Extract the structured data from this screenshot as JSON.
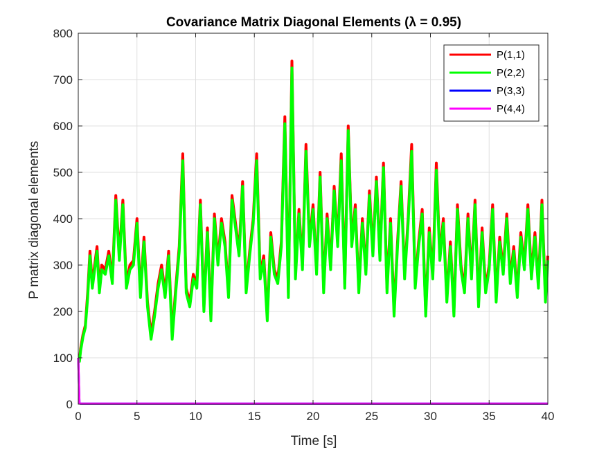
{
  "chart_data": {
    "type": "line",
    "title": "Covariance Matrix Diagonal Elements (λ = 0.95)",
    "xlabel": "Time [s]",
    "ylabel": "P matrix diagonal elements",
    "xlim": [
      0,
      40
    ],
    "ylim": [
      0,
      800
    ],
    "xticks": [
      0,
      5,
      10,
      15,
      20,
      25,
      30,
      35,
      40
    ],
    "yticks": [
      0,
      100,
      200,
      300,
      400,
      500,
      600,
      700,
      800
    ],
    "xtick_labels": [
      "0",
      "5",
      "10",
      "15",
      "20",
      "25",
      "30",
      "35",
      "40"
    ],
    "ytick_labels": [
      "0",
      "100",
      "200",
      "300",
      "400",
      "500",
      "600",
      "700",
      "800"
    ],
    "grid": true,
    "legend_position": "top-right",
    "x": [
      0,
      0.1,
      0.2,
      0.4,
      0.6,
      0.8,
      1.0,
      1.2,
      1.4,
      1.6,
      1.8,
      2.0,
      2.3,
      2.6,
      2.9,
      3.2,
      3.5,
      3.8,
      4.1,
      4.4,
      4.7,
      5.0,
      5.3,
      5.6,
      5.9,
      6.2,
      6.5,
      6.8,
      7.1,
      7.4,
      7.7,
      8.0,
      8.3,
      8.6,
      8.9,
      9.2,
      9.5,
      9.8,
      10.1,
      10.4,
      10.7,
      11.0,
      11.3,
      11.6,
      11.9,
      12.2,
      12.5,
      12.8,
      13.1,
      13.4,
      13.7,
      14.0,
      14.3,
      14.6,
      14.9,
      15.2,
      15.5,
      15.8,
      16.1,
      16.4,
      16.7,
      17.0,
      17.3,
      17.6,
      17.9,
      18.2,
      18.5,
      18.8,
      19.1,
      19.4,
      19.7,
      20.0,
      20.3,
      20.6,
      20.9,
      21.2,
      21.5,
      21.8,
      22.1,
      22.4,
      22.7,
      23.0,
      23.3,
      23.6,
      23.9,
      24.2,
      24.5,
      24.8,
      25.1,
      25.4,
      25.7,
      26.0,
      26.3,
      26.6,
      26.9,
      27.2,
      27.5,
      27.8,
      28.1,
      28.4,
      28.7,
      29.0,
      29.3,
      29.6,
      29.9,
      30.2,
      30.5,
      30.8,
      31.1,
      31.4,
      31.7,
      32.0,
      32.3,
      32.6,
      32.9,
      33.2,
      33.5,
      33.8,
      34.1,
      34.4,
      34.7,
      35.0,
      35.3,
      35.6,
      35.9,
      36.2,
      36.5,
      36.8,
      37.1,
      37.4,
      37.7,
      38.0,
      38.3,
      38.6,
      38.9,
      39.2,
      39.5,
      39.8,
      40.0
    ],
    "series": [
      {
        "name": "P(1,1)",
        "color": "#ff0000",
        "values": [
          100,
          95,
          120,
          150,
          170,
          240,
          330,
          260,
          300,
          340,
          250,
          300,
          290,
          330,
          270,
          450,
          320,
          440,
          260,
          300,
          310,
          400,
          240,
          360,
          220,
          150,
          200,
          260,
          300,
          240,
          330,
          150,
          250,
          340,
          540,
          250,
          220,
          280,
          260,
          440,
          210,
          380,
          190,
          410,
          310,
          400,
          350,
          240,
          450,
          390,
          330,
          480,
          250,
          330,
          400,
          540,
          280,
          320,
          190,
          370,
          290,
          270,
          350,
          620,
          240,
          740,
          280,
          420,
          300,
          560,
          350,
          430,
          290,
          500,
          250,
          410,
          300,
          470,
          350,
          540,
          260,
          600,
          350,
          430,
          250,
          400,
          290,
          460,
          330,
          490,
          320,
          520,
          250,
          400,
          200,
          350,
          480,
          280,
          400,
          560,
          260,
          350,
          420,
          200,
          380,
          280,
          520,
          320,
          400,
          230,
          350,
          200,
          430,
          300,
          250,
          410,
          280,
          440,
          220,
          380,
          250,
          300,
          430,
          230,
          360,
          290,
          410,
          270,
          340,
          240,
          370,
          300,
          430,
          280,
          370,
          260,
          440,
          230,
          320
        ]
      },
      {
        "name": "P(2,2)",
        "color": "#00ff00",
        "values": [
          100,
          92,
          115,
          145,
          165,
          230,
          320,
          250,
          290,
          330,
          240,
          290,
          280,
          320,
          260,
          440,
          310,
          430,
          250,
          290,
          300,
          390,
          230,
          350,
          210,
          140,
          190,
          250,
          290,
          230,
          320,
          140,
          240,
          330,
          525,
          240,
          210,
          270,
          250,
          430,
          200,
          370,
          180,
          400,
          300,
          390,
          340,
          230,
          440,
          380,
          320,
          470,
          240,
          320,
          390,
          525,
          270,
          310,
          180,
          360,
          280,
          260,
          340,
          605,
          230,
          725,
          270,
          410,
          290,
          545,
          340,
          420,
          280,
          490,
          240,
          400,
          290,
          460,
          340,
          525,
          250,
          590,
          340,
          420,
          240,
          390,
          280,
          450,
          320,
          480,
          310,
          510,
          240,
          390,
          190,
          340,
          470,
          270,
          390,
          545,
          250,
          340,
          410,
          190,
          370,
          270,
          505,
          310,
          390,
          220,
          340,
          190,
          420,
          290,
          240,
          400,
          270,
          430,
          210,
          370,
          240,
          290,
          420,
          220,
          350,
          280,
          400,
          260,
          330,
          230,
          360,
          290,
          420,
          270,
          360,
          250,
          430,
          220,
          310
        ]
      },
      {
        "name": "P(3,3)",
        "color": "#0000ff",
        "values": [
          100,
          2,
          1,
          1,
          1,
          1,
          1,
          1,
          1,
          1,
          1,
          1,
          1,
          1,
          1,
          1,
          1,
          1,
          1,
          1,
          1,
          1,
          1,
          1,
          1,
          1,
          1,
          1,
          1,
          1,
          1,
          1,
          1,
          1,
          1,
          1,
          1,
          1,
          1,
          1,
          1,
          1,
          1,
          1,
          1,
          1,
          1,
          1,
          1,
          1,
          1,
          1,
          1,
          1,
          1,
          1,
          1,
          1,
          1,
          1,
          1,
          1,
          1,
          1,
          1,
          1,
          1,
          1,
          1,
          1,
          1,
          1,
          1,
          1,
          1,
          1,
          1,
          1,
          1,
          1,
          1,
          1,
          1,
          1,
          1,
          1,
          1,
          1,
          1,
          1,
          1,
          1,
          1,
          1,
          1,
          1,
          1,
          1,
          1,
          1,
          1,
          1,
          1,
          1,
          1,
          1,
          1,
          1,
          1,
          1,
          1,
          1,
          1,
          1,
          1,
          1,
          1,
          1,
          1,
          1,
          1,
          1,
          1,
          1,
          1,
          1,
          1,
          1,
          1,
          1,
          1,
          1,
          1,
          1,
          1,
          1,
          1,
          1,
          1
        ]
      },
      {
        "name": "P(4,4)",
        "color": "#ff00ff",
        "values": [
          100,
          2,
          1,
          1,
          1,
          1,
          1,
          1,
          1,
          1,
          1,
          1,
          1,
          1,
          1,
          1,
          1,
          1,
          1,
          1,
          1,
          1,
          1,
          1,
          1,
          1,
          1,
          1,
          1,
          1,
          1,
          1,
          1,
          1,
          1,
          1,
          1,
          1,
          1,
          1,
          1,
          1,
          1,
          1,
          1,
          1,
          1,
          1,
          1,
          1,
          1,
          1,
          1,
          1,
          1,
          1,
          1,
          1,
          1,
          1,
          1,
          1,
          1,
          1,
          1,
          1,
          1,
          1,
          1,
          1,
          1,
          1,
          1,
          1,
          1,
          1,
          1,
          1,
          1,
          1,
          1,
          1,
          1,
          1,
          1,
          1,
          1,
          1,
          1,
          1,
          1,
          1,
          1,
          1,
          1,
          1,
          1,
          1,
          1,
          1,
          1,
          1,
          1,
          1,
          1,
          1,
          1,
          1,
          1,
          1,
          1,
          1,
          1,
          1,
          1,
          1,
          1,
          1,
          1,
          1,
          1,
          1,
          1,
          1,
          1,
          1,
          1,
          1,
          1,
          1,
          1,
          1,
          1,
          1,
          1,
          1,
          1,
          1,
          1
        ]
      }
    ]
  }
}
